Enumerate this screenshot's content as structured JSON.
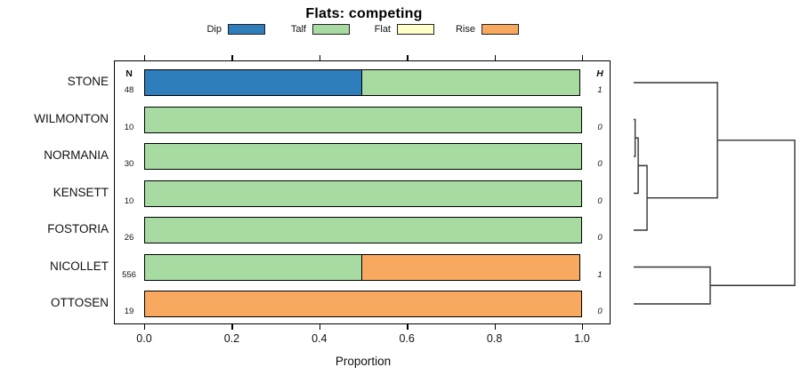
{
  "chart_data": {
    "type": "bar",
    "variant": "stacked-horizontal-proportion-with-dendrogram",
    "title": "Flats: competing",
    "xlabel": "Proportion",
    "xlim": [
      0,
      1
    ],
    "xticks": [
      "0.0",
      "0.2",
      "0.4",
      "0.6",
      "0.8",
      "1.0"
    ],
    "grid": false,
    "legend_position": "top",
    "categories": [
      "STONE",
      "WILMONTON",
      "NORMANIA",
      "KENSETT",
      "FOSTORIA",
      "NICOLLET",
      "OTTOSEN"
    ],
    "n_header": "N",
    "h_header": "H",
    "n_values": [
      "48",
      "10",
      "30",
      "10",
      "26",
      "556",
      "19"
    ],
    "h_values": [
      "1",
      "0",
      "0",
      "0",
      "0",
      "1",
      "0"
    ],
    "series": [
      {
        "name": "Dip",
        "color": "#2E7EBC",
        "values": [
          0.5,
          0,
          0,
          0,
          0,
          0,
          0
        ]
      },
      {
        "name": "Talf",
        "color": "#A7DBA2",
        "values": [
          0.5,
          1,
          1,
          1,
          1,
          0.5,
          0
        ]
      },
      {
        "name": "Flat",
        "color": "#FFFFC9",
        "values": [
          0,
          0,
          0,
          0,
          0,
          0,
          0
        ]
      },
      {
        "name": "Rise",
        "color": "#F9A95F",
        "values": [
          0,
          0,
          0,
          0,
          0,
          0.5,
          1
        ]
      }
    ],
    "dendrogram": {
      "leaf_order": [
        "STONE",
        "WILMONTON",
        "NORMANIA",
        "KENSETT",
        "FOSTORIA",
        "NICOLLET",
        "OTTOSEN"
      ],
      "merges": [
        {
          "a": "WILMONTON",
          "b": "NORMANIA",
          "height": 0.009
        },
        {
          "a": "#0",
          "b": "KENSETT",
          "height": 0.028
        },
        {
          "a": "#1",
          "b": "FOSTORIA",
          "height": 0.083
        },
        {
          "a": "STONE",
          "b": "#2",
          "height": 0.52
        },
        {
          "a": "NICOLLET",
          "b": "OTTOSEN",
          "height": 0.475
        },
        {
          "a": "#3",
          "b": "#4",
          "height": 1.0
        }
      ],
      "line_color": "#333333"
    }
  }
}
